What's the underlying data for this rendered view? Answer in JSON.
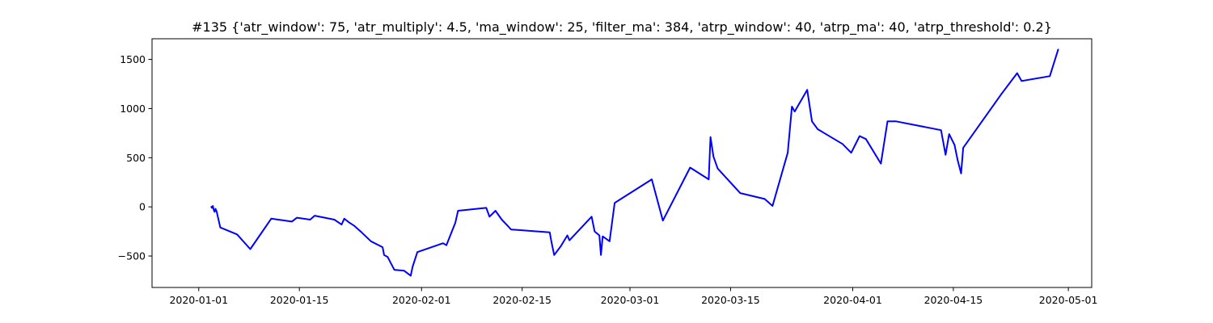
{
  "chart_data": {
    "type": "line",
    "title": "#135 {'atr_window': 75, 'atr_multiply': 4.5, 'ma_window': 25, 'filter_ma': 384, 'atrp_window': 40, 'atrp_ma': 40, 'atrp_threshold': 0.2}",
    "xlabel": "",
    "ylabel": "",
    "x_axis_type": "date",
    "xlim": [
      "2019-12-25T12:00",
      "2020-05-04T06:00"
    ],
    "ylim": [
      -820,
      1710
    ],
    "x_ticks": [
      {
        "value": "2020-01-01",
        "label": "2020-01-01"
      },
      {
        "value": "2020-01-15",
        "label": "2020-01-15"
      },
      {
        "value": "2020-02-01",
        "label": "2020-02-01"
      },
      {
        "value": "2020-02-15",
        "label": "2020-02-15"
      },
      {
        "value": "2020-03-01",
        "label": "2020-03-01"
      },
      {
        "value": "2020-03-15",
        "label": "2020-03-15"
      },
      {
        "value": "2020-04-01",
        "label": "2020-04-01"
      },
      {
        "value": "2020-04-15",
        "label": "2020-04-15"
      },
      {
        "value": "2020-05-01",
        "label": "2020-05-01"
      }
    ],
    "y_ticks": [
      {
        "value": -500,
        "label": "−500"
      },
      {
        "value": 0,
        "label": "0"
      },
      {
        "value": 500,
        "label": "500"
      },
      {
        "value": 1000,
        "label": "1000"
      },
      {
        "value": 1500,
        "label": "1500"
      }
    ],
    "grid": false,
    "legend": "none",
    "line_color": "#0000ff",
    "series": [
      {
        "x": [
          "2020-01-02T18:00",
          "2020-01-02T20:00",
          "2020-01-02T23:00",
          "2020-01-03T02:00",
          "2020-01-03T05:00",
          "2020-01-03T08:00",
          "2020-01-03T12:00",
          "2020-01-04T00:00",
          "2020-01-06T08:00",
          "2020-01-08T04:00",
          "2020-01-11T02:00",
          "2020-01-13T23:00",
          "2020-01-14T16:00",
          "2020-01-16T12:00",
          "2020-01-17T03:00",
          "2020-01-19T21:00",
          "2020-01-20T21:00",
          "2020-01-21T06:00",
          "2020-01-21T23:00",
          "2020-01-22T14:00",
          "2020-01-23T16:00",
          "2020-01-24T23:00",
          "2020-01-26T14:00",
          "2020-01-26T19:00",
          "2020-01-27T07:00",
          "2020-01-28T05:00",
          "2020-01-29T14:00",
          "2020-01-30T12:00",
          "2020-01-30T18:00",
          "2020-01-31T10:00",
          "2020-02-04T00:00",
          "2020-02-04T11:00",
          "2020-02-05T17:00",
          "2020-02-06T02:00",
          "2020-02-10T00:00",
          "2020-02-10T11:00",
          "2020-02-11T07:00",
          "2020-02-12T04:00",
          "2020-02-12T23:00",
          "2020-02-13T11:00",
          "2020-02-18T20:00",
          "2020-02-19T02:00",
          "2020-02-19T11:00",
          "2020-02-20T09:00",
          "2020-02-21T07:00",
          "2020-02-21T14:00",
          "2020-02-24T16:00",
          "2020-02-25T02:00",
          "2020-02-25T18:00",
          "2020-02-25T23:00",
          "2020-02-26T05:00",
          "2020-02-27T04:00",
          "2020-02-27T21:00",
          "2020-03-04T01:00",
          "2020-03-05T14:00",
          "2020-03-09T09:00",
          "2020-03-11T23:00",
          "2020-03-12T05:00",
          "2020-03-12T15:00",
          "2020-03-13T05:00",
          "2020-03-16T08:00",
          "2020-03-19T18:00",
          "2020-03-20T20:00",
          "2020-03-22T23:00",
          "2020-03-23T13:00",
          "2020-03-23T22:00",
          "2020-03-25T16:00",
          "2020-03-26T08:00",
          "2020-03-27T03:00",
          "2020-03-30T14:00",
          "2020-03-31T19:00",
          "2020-04-01T23:00",
          "2020-04-02T20:00",
          "2020-04-04T22:00",
          "2020-04-05T20:00",
          "2020-04-07T01:00",
          "2020-04-13T07:00",
          "2020-04-13T22:00",
          "2020-04-14T10:00",
          "2020-04-15T04:00",
          "2020-04-15T14:00",
          "2020-04-16T02:00",
          "2020-04-16T09:00",
          "2020-04-21T17:00",
          "2020-04-23T21:00",
          "2020-04-24T12:00",
          "2020-04-28T10:00",
          "2020-04-29T14:00"
        ],
        "values": [
          0,
          -10,
          10,
          -30,
          -50,
          -20,
          -50,
          -210,
          -280,
          -430,
          -120,
          -150,
          -110,
          -130,
          -90,
          -130,
          -180,
          -120,
          -160,
          -190,
          -260,
          -350,
          -410,
          -490,
          -510,
          -640,
          -650,
          -700,
          -610,
          -460,
          -370,
          -390,
          -160,
          -40,
          -10,
          -100,
          -40,
          -130,
          -190,
          -230,
          -260,
          -360,
          -490,
          -400,
          -290,
          -340,
          -100,
          -250,
          -290,
          -490,
          -300,
          -350,
          40,
          280,
          -140,
          400,
          280,
          710,
          510,
          390,
          140,
          80,
          10,
          550,
          1020,
          970,
          1190,
          870,
          790,
          640,
          550,
          720,
          690,
          440,
          870,
          870,
          780,
          530,
          740,
          630,
          480,
          340,
          600,
          1150,
          1360,
          1280,
          1330,
          1600
        ]
      }
    ]
  }
}
